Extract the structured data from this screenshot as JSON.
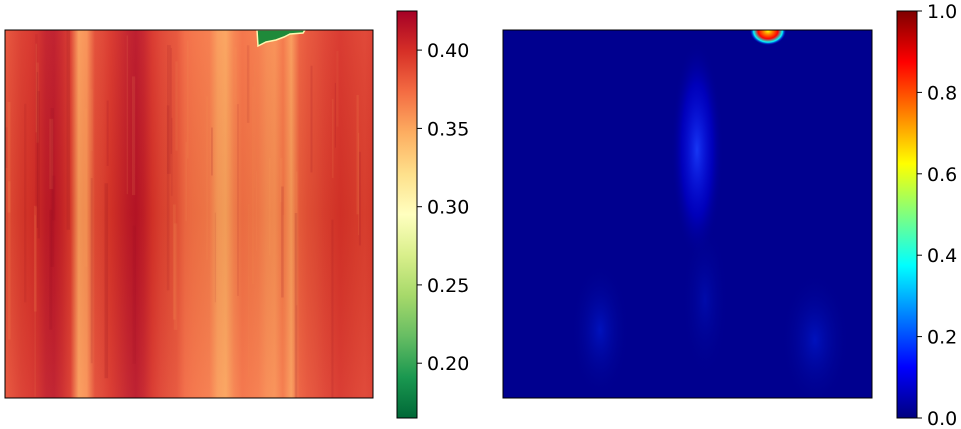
{
  "chart_data": [
    {
      "type": "heatmap",
      "colormap": "RdYlGn_r",
      "colormap_stops": [
        "#006837",
        "#1a9850",
        "#66bd63",
        "#a6d96a",
        "#d9ef8b",
        "#ffffbf",
        "#fee08b",
        "#fdae61",
        "#f46d43",
        "#d73027",
        "#a50026"
      ],
      "vmin": 0.165,
      "vmax": 0.425,
      "colorbar": {
        "ticks": [
          0.2,
          0.25,
          0.3,
          0.35,
          0.4
        ],
        "tick_labels": [
          "0.20",
          "0.25",
          "0.30",
          "0.35",
          "0.40"
        ]
      },
      "axes_ticks": false,
      "column_profile_left_to_right": [
        0.385,
        0.39,
        0.395,
        0.398,
        0.402,
        0.41,
        0.412,
        0.405,
        0.395,
        0.355,
        0.36,
        0.388,
        0.392,
        0.398,
        0.404,
        0.41,
        0.414,
        0.408,
        0.398,
        0.392,
        0.388,
        0.385,
        0.375,
        0.372,
        0.37,
        0.368,
        0.355,
        0.352,
        0.365,
        0.372,
        0.37,
        0.368,
        0.362,
        0.36,
        0.37,
        0.355,
        0.38,
        0.385,
        0.388,
        0.392,
        0.395,
        0.398,
        0.396,
        0.394,
        0.392,
        0.395
      ],
      "hotspot": {
        "x_fraction": 0.76,
        "y_fraction": 0.02,
        "min_value": 0.165
      }
    },
    {
      "type": "heatmap",
      "colormap": "jet",
      "colormap_stops": [
        "#00007f",
        "#0000ff",
        "#007fff",
        "#00ffff",
        "#7fff7f",
        "#ffff00",
        "#ff7f00",
        "#ff0000",
        "#7f0000"
      ],
      "vmin": 0.0,
      "vmax": 1.0,
      "colorbar": {
        "ticks": [
          0.0,
          0.2,
          0.4,
          0.6,
          0.8,
          1.0
        ],
        "tick_labels": [
          "0.0",
          "0.2",
          "0.4",
          "0.6",
          "0.8",
          "1.0"
        ]
      },
      "axes_ticks": false,
      "background_value": 0.04,
      "hotspot": {
        "x_fraction": 0.7,
        "y_fraction": 0.01,
        "peak_value": 1.0
      }
    }
  ]
}
